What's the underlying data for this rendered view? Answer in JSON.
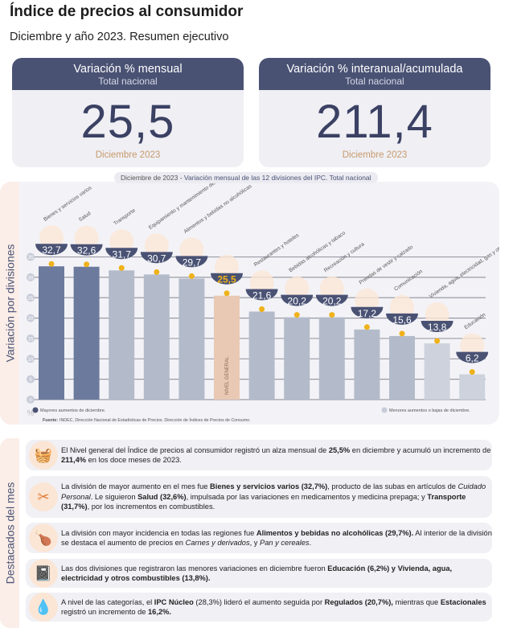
{
  "header": {
    "title": "Índice de precios al consumidor",
    "subtitle": "Diciembre y año 2023. Resumen ejecutivo"
  },
  "cards": [
    {
      "title": "Variación % mensual",
      "subtitle": "Total nacional",
      "value": "25,5",
      "date": "Diciembre 2023"
    },
    {
      "title": "Variación % interanual/acumulada",
      "subtitle": "Total nacional",
      "value": "211,4",
      "date": "Diciembre 2023"
    }
  ],
  "chart_data": {
    "type": "bar",
    "title_prefix": "Diciembre de 2023",
    "title": "Variación mensual de las 12 divisiones del IPC. Total nacional",
    "ylabel": "Variación por divisiones",
    "yunit": "%",
    "ylim": [
      0,
      35
    ],
    "yticks": [
      0,
      5,
      10,
      15,
      20,
      25,
      30,
      35
    ],
    "grid": true,
    "categories": [
      "Bienes y servicios varios",
      "Salud",
      "Transporte",
      "Equipamiento y mantenimiento del hogar",
      "Alimentos y bebidas no alcohólicas",
      "Nivel general",
      "Restaurantes y hoteles",
      "Bebidas alcohólicas y tabaco",
      "Recreación y cultura",
      "Prendas de vestir y calzado",
      "Comunicación",
      "Vivienda, agua, electricidad, gas y otros combustibles",
      "Educación"
    ],
    "values": [
      32.7,
      32.6,
      31.7,
      30.7,
      29.7,
      25.5,
      21.6,
      20.2,
      20.2,
      17.2,
      15.6,
      13.8,
      6.2
    ],
    "labels": [
      "32,7",
      "32,6",
      "31,7",
      "30,7",
      "29,7",
      "25,5",
      "21,6",
      "20,2",
      "20,2",
      "17,2",
      "15,6",
      "13,8",
      "6,2"
    ],
    "groups": [
      "mayor",
      "mayor",
      "medio",
      "medio",
      "medio",
      "general",
      "medio",
      "medio",
      "medio",
      "medio",
      "medio",
      "menor",
      "menor"
    ],
    "bar_inner_label": "NIVEL GENERAL",
    "colors": {
      "mayor": "#6c7a9d",
      "medio": "#b3bbca",
      "menor": "#cdd2dc",
      "general": "#e9c9b4",
      "badge": "#4a5274",
      "dot": "#f0b21a"
    },
    "legend": {
      "high": "Mayores aumentos de diciembre.",
      "low": "Menores aumentos o bajas de diciembre."
    },
    "source_label": "Fuente:",
    "source": "INDEC, Dirección Nacional de Estadísticas de Precios. Dirección de Índices de Precios de Consumo."
  },
  "highlights": {
    "label": "Destacados del mes",
    "items": [
      {
        "icon": "food-basket-icon",
        "html": "El Nivel general del Índice de precios al consumidor registró un alza mensual de <b>25,5%</b> en diciembre y acumuló un incremento de <b>211,4%</b> en los doce meses de 2023."
      },
      {
        "icon": "scissors-comb-icon",
        "html": "La división de mayor aumento en el mes fue <b>Bienes y servicios varios (32,7%)</b>, producto de las subas en artículos de <i>Cuidado Personal</i>. Le siguieron <b>Salud (32,6%)</b>, impulsada por las variaciones en medicamentos y medicina prepaga; y <b>Transporte (31,7%)</b>, por los incrementos en combustibles."
      },
      {
        "icon": "food-icon",
        "html": "La división con mayor incidencia en todas las regiones fue <b>Alimentos y bebidas no alcohólicas (29,7%).</b> Al interior de la división se destaca el aumento de precios en <i>Carnes y derivados</i>, y <i>Pan y cereales</i>."
      },
      {
        "icon": "notebook-icon",
        "html": "Las dos divisiones que registraron las menores variaciones en diciembre fueron <b>Educación (6,2%) y Vivienda, agua, electricidad y otros combustibles (13,8%).</b>"
      },
      {
        "icon": "categories-icon",
        "html": "A nivel de las categorías, el <b>IPC Núcleo</b> (28,3%) lideró el aumento seguida por <b>Regulados (20,7%),</b> mientras que <b>Estacionales</b> registró un incremento de <b>16,2%.</b>"
      }
    ]
  }
}
